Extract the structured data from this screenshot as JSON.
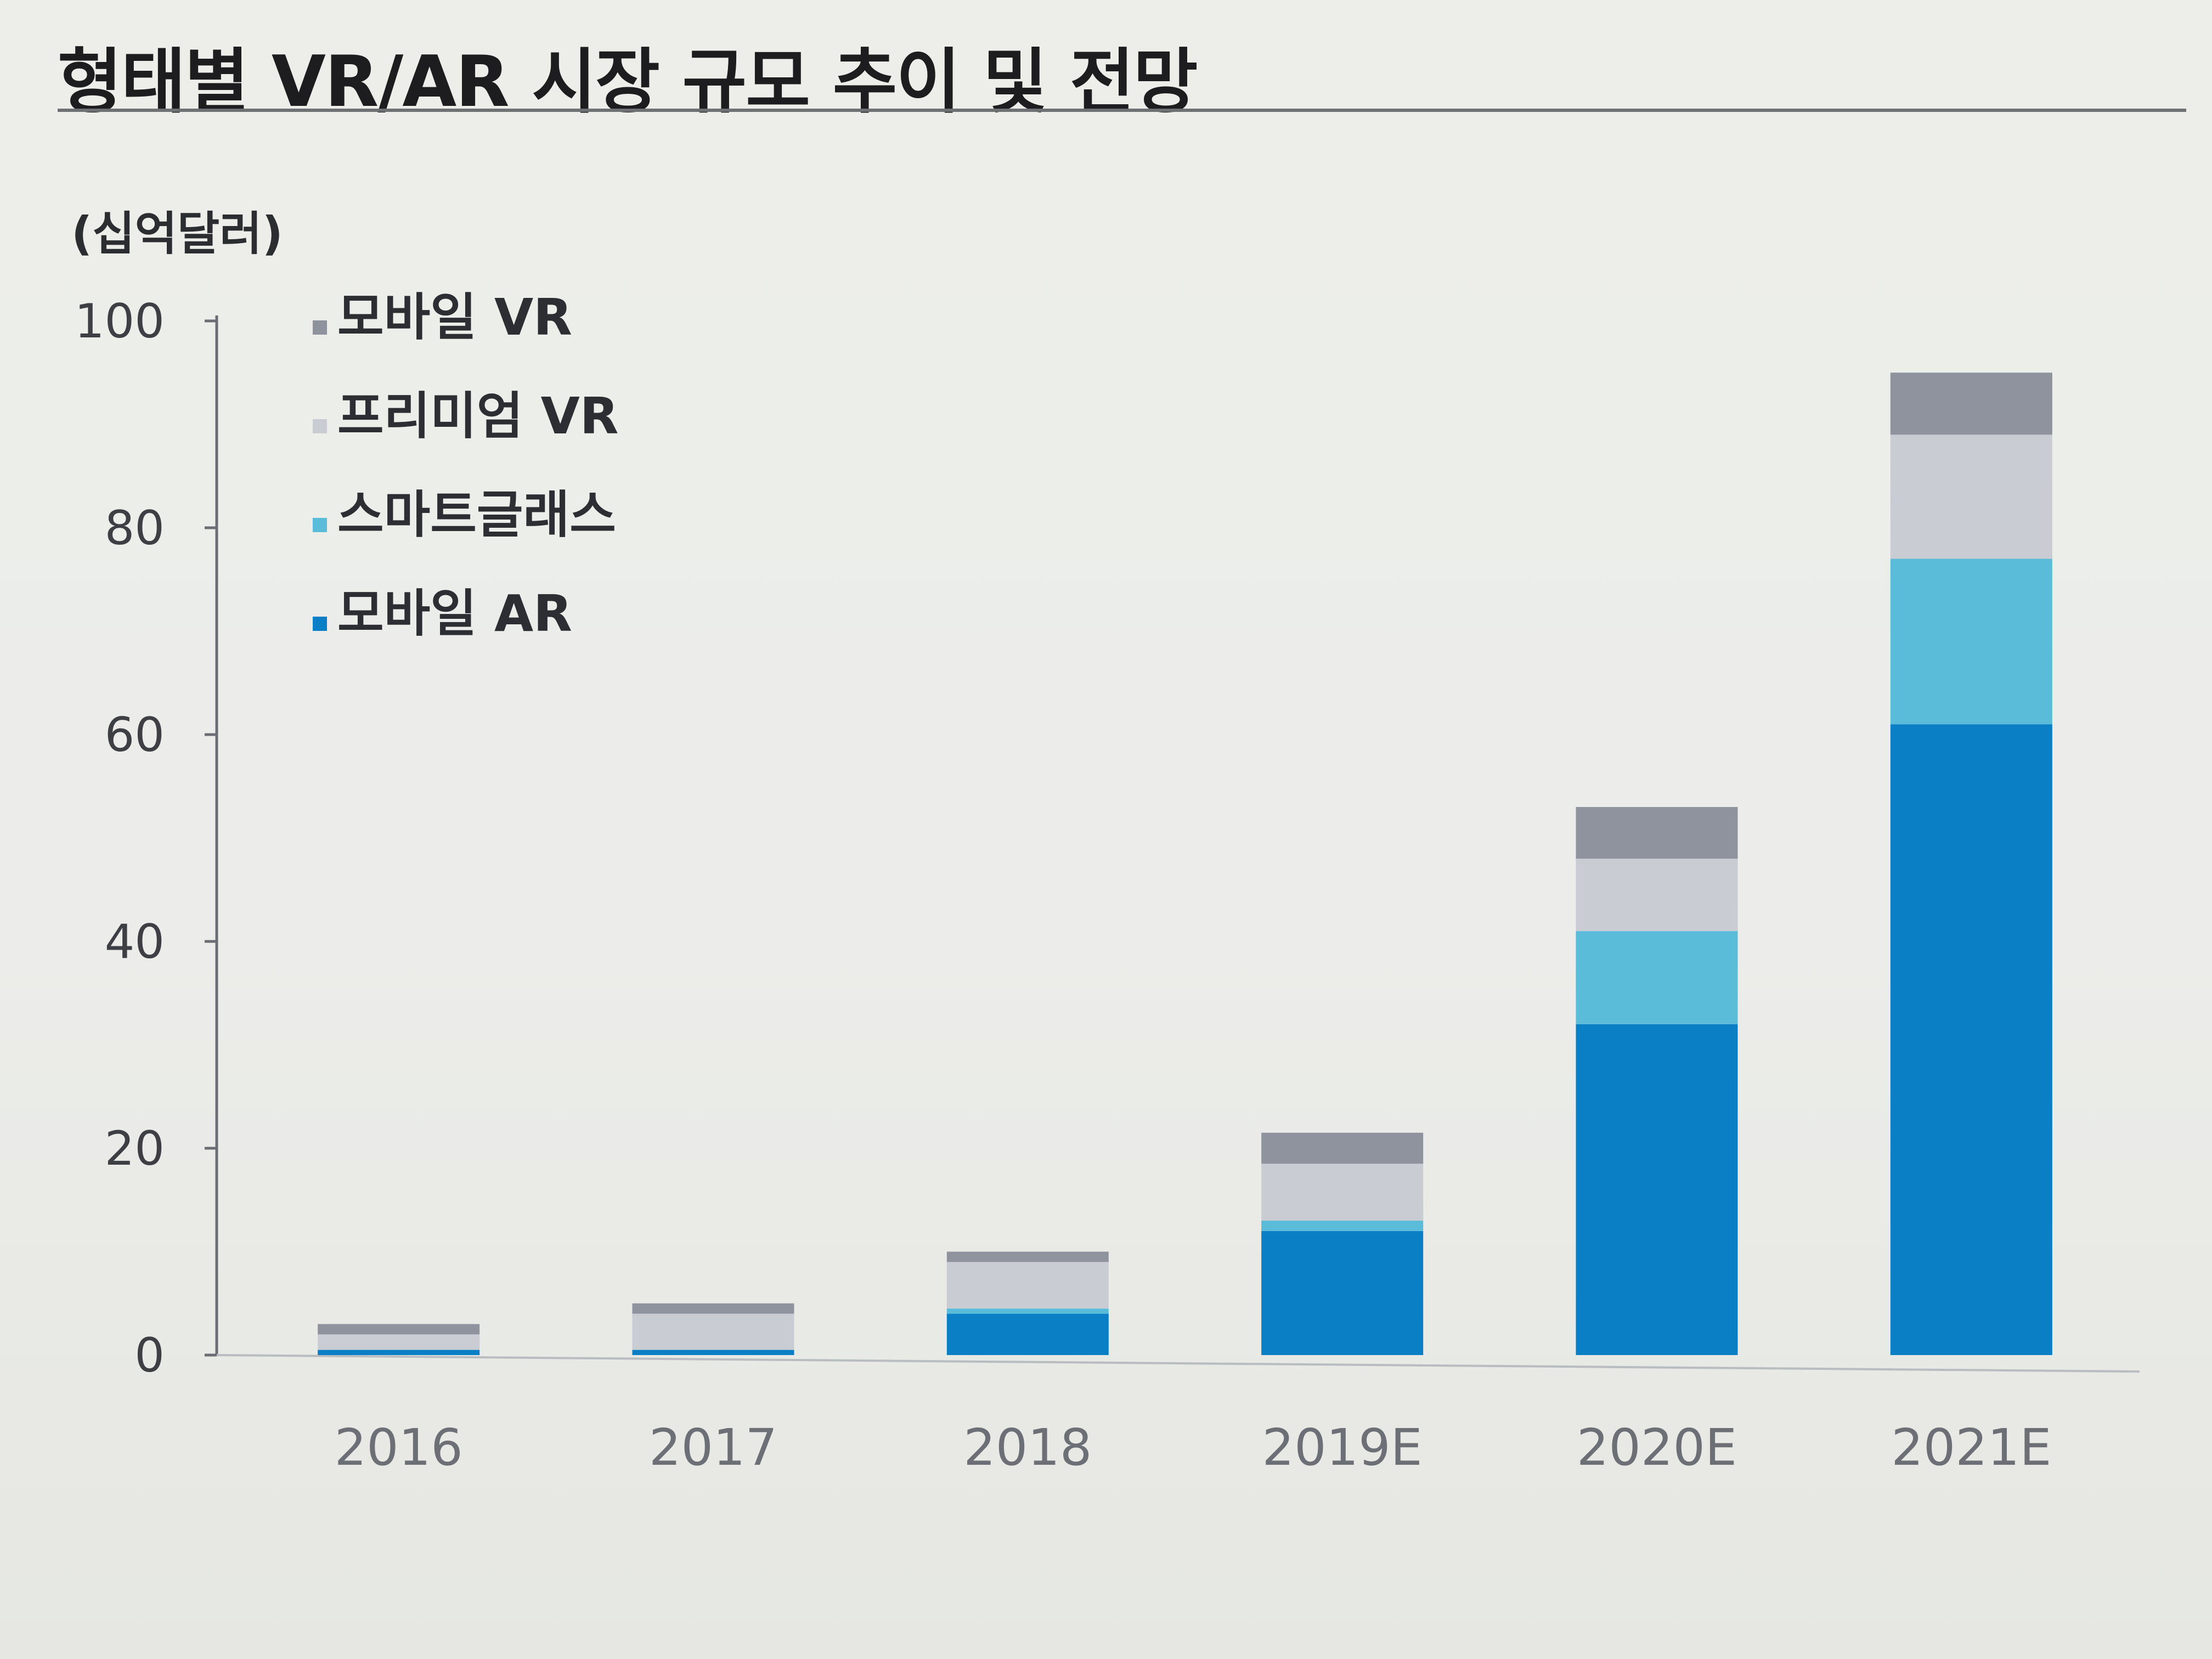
{
  "chart_data": {
    "type": "bar",
    "stacked": true,
    "title": "형태별 VR/AR 시장 규모 추이 및 전망",
    "unit_label": "(십억달러)",
    "categories": [
      "2016",
      "2017",
      "2018",
      "2019E",
      "2020E",
      "2021E"
    ],
    "ylim": [
      0,
      100
    ],
    "yticks": [
      0,
      20,
      40,
      60,
      80,
      100
    ],
    "grid": false,
    "legend_position": "top-left",
    "series": [
      {
        "name": "모바일 AR",
        "color": "#0a7fc6",
        "values": [
          0.5,
          0.5,
          4,
          12,
          32,
          61
        ]
      },
      {
        "name": "스마트글래스",
        "color": "#5bbcda",
        "values": [
          0,
          0,
          0.5,
          1,
          9,
          16
        ]
      },
      {
        "name": "프리미엄 VR",
        "color": "#c9ccd3",
        "values": [
          1.5,
          3.5,
          4.5,
          5.5,
          7,
          12
        ]
      },
      {
        "name": "모바일 VR",
        "color": "#8f939e",
        "values": [
          1,
          1,
          1,
          3,
          5,
          6
        ]
      }
    ],
    "legend_order": [
      "모바일 VR",
      "프리미엄 VR",
      "스마트글래스",
      "모바일 AR"
    ]
  }
}
